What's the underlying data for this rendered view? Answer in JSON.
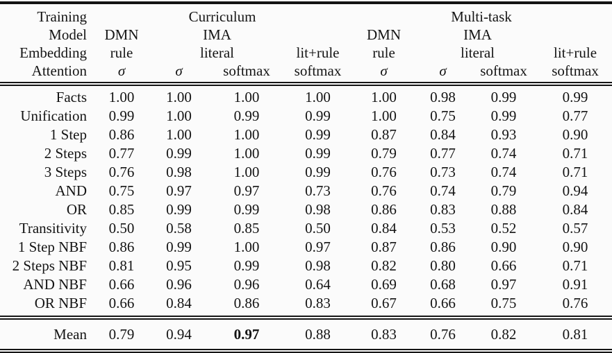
{
  "table": {
    "header": {
      "row_labels": [
        "Training",
        "Model",
        "Embedding",
        "Attention"
      ],
      "groups": [
        {
          "label": "Curriculum"
        },
        {
          "label": "Multi-task"
        }
      ],
      "model_labels": [
        "DMN",
        "IMA",
        "DMN",
        "IMA"
      ],
      "embedding_labels": [
        "rule",
        "literal",
        "lit+rule",
        "rule",
        "literal",
        "lit+rule"
      ],
      "attention_labels": [
        "σ",
        "σ",
        "softmax",
        "softmax",
        "σ",
        "σ",
        "softmax",
        "softmax"
      ]
    },
    "rows": [
      {
        "label": "Facts",
        "values": [
          "1.00",
          "1.00",
          "1.00",
          "1.00",
          "1.00",
          "0.98",
          "0.99",
          "0.99"
        ]
      },
      {
        "label": "Unification",
        "values": [
          "0.99",
          "1.00",
          "0.99",
          "0.99",
          "1.00",
          "0.75",
          "0.99",
          "0.77"
        ]
      },
      {
        "label": "1 Step",
        "values": [
          "0.86",
          "1.00",
          "1.00",
          "0.99",
          "0.87",
          "0.84",
          "0.93",
          "0.90"
        ]
      },
      {
        "label": "2 Steps",
        "values": [
          "0.77",
          "0.99",
          "1.00",
          "0.99",
          "0.79",
          "0.77",
          "0.74",
          "0.71"
        ]
      },
      {
        "label": "3 Steps",
        "values": [
          "0.76",
          "0.98",
          "1.00",
          "0.99",
          "0.76",
          "0.73",
          "0.74",
          "0.71"
        ]
      },
      {
        "label": "AND",
        "values": [
          "0.75",
          "0.97",
          "0.97",
          "0.73",
          "0.76",
          "0.74",
          "0.79",
          "0.94"
        ]
      },
      {
        "label": "OR",
        "values": [
          "0.85",
          "0.99",
          "0.99",
          "0.98",
          "0.86",
          "0.83",
          "0.88",
          "0.84"
        ]
      },
      {
        "label": "Transitivity",
        "values": [
          "0.50",
          "0.58",
          "0.85",
          "0.50",
          "0.84",
          "0.53",
          "0.52",
          "0.57"
        ]
      },
      {
        "label": "1 Step NBF",
        "values": [
          "0.86",
          "0.99",
          "1.00",
          "0.97",
          "0.87",
          "0.86",
          "0.90",
          "0.90"
        ]
      },
      {
        "label": "2 Steps NBF",
        "values": [
          "0.81",
          "0.95",
          "0.99",
          "0.98",
          "0.82",
          "0.80",
          "0.66",
          "0.71"
        ]
      },
      {
        "label": "AND NBF",
        "values": [
          "0.66",
          "0.96",
          "0.96",
          "0.64",
          "0.69",
          "0.68",
          "0.97",
          "0.91"
        ]
      },
      {
        "label": "OR NBF",
        "values": [
          "0.66",
          "0.84",
          "0.86",
          "0.83",
          "0.67",
          "0.66",
          "0.75",
          "0.76"
        ]
      }
    ],
    "mean_row": {
      "label": "Mean",
      "values": [
        "0.79",
        "0.94",
        "0.97",
        "0.88",
        "0.83",
        "0.76",
        "0.82",
        "0.81"
      ],
      "bold_index": 2
    },
    "colors": {
      "text": "#141414",
      "background": "#fbfbfb",
      "rule": "#141414"
    }
  }
}
